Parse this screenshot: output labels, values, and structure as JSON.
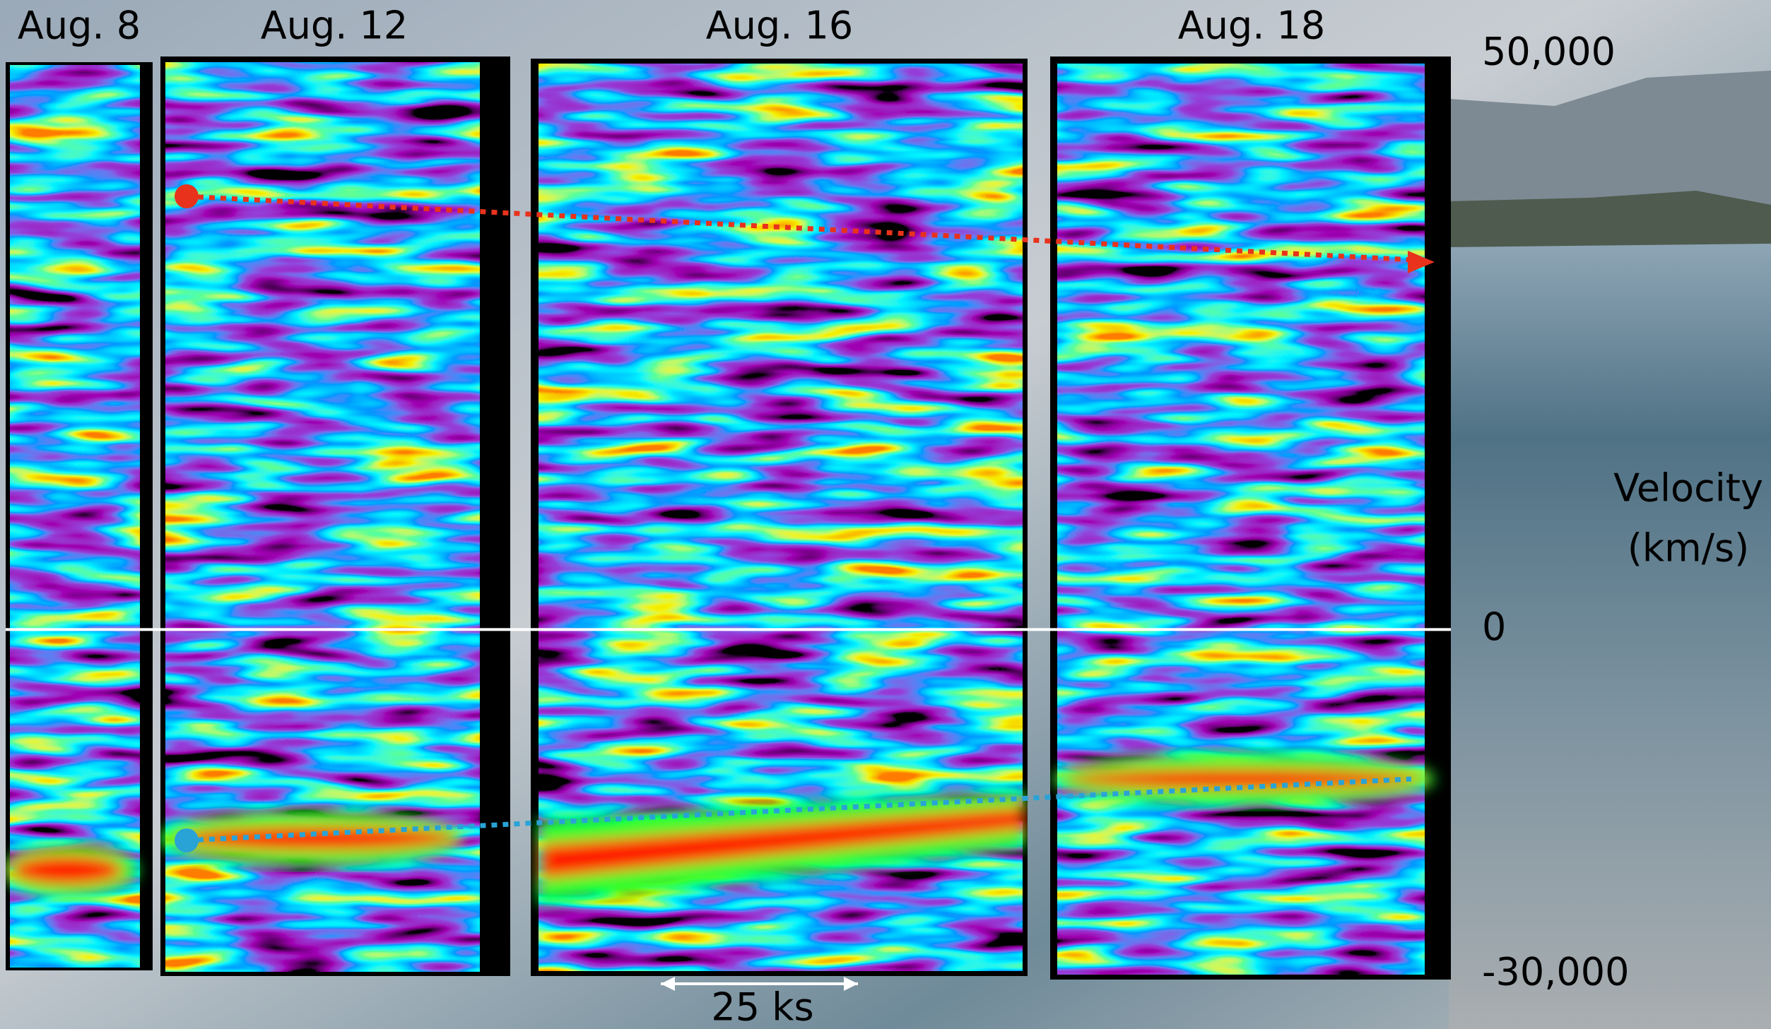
{
  "panels": [
    {
      "label": "Aug. 8"
    },
    {
      "label": "Aug. 12"
    },
    {
      "label": "Aug. 16"
    },
    {
      "label": "Aug. 18"
    }
  ],
  "axis": {
    "title_lines": [
      "Velocity",
      "(km/s)"
    ],
    "ylim": [
      -30000,
      50000
    ],
    "yticks": [
      {
        "value": 50000,
        "label": "50,000"
      },
      0,
      {
        "value": -30000,
        "label": "-30,000"
      }
    ]
  },
  "scale_bar": {
    "label": "25 ks"
  }
}
